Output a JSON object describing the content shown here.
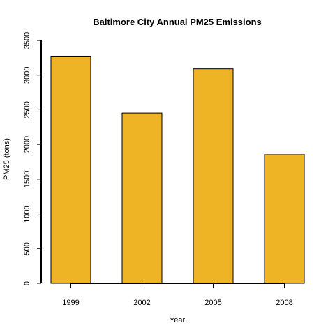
{
  "chart_data": {
    "type": "bar",
    "title": "Baltimore City Annual PM25 Emissions",
    "xlabel": "Year",
    "ylabel": "PM25 (tons)",
    "categories": [
      "1999",
      "2002",
      "2005",
      "2008"
    ],
    "values": [
      3274,
      2453,
      3091,
      1862
    ],
    "ylim": [
      0,
      3500
    ],
    "yticks": [
      0,
      500,
      1000,
      1500,
      2000,
      2500,
      3000,
      3500
    ],
    "bar_color": "#EFB425",
    "bar_border_color": "#000000",
    "grid": false,
    "legend": "none"
  }
}
